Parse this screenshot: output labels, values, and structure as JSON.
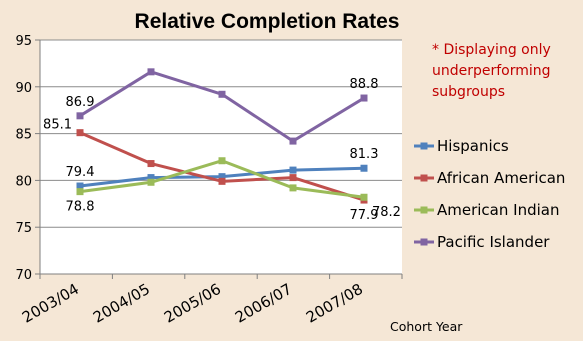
{
  "chart_data": {
    "type": "line",
    "title": "Relative Completion Rates",
    "xlabel": "Cohort Year",
    "ylabel": "",
    "categories": [
      "2003/04",
      "2004/05",
      "2005/06",
      "2006/07",
      "2007/08"
    ],
    "ylim": [
      70,
      95
    ],
    "yticks": [
      70,
      75,
      80,
      85,
      90,
      95
    ],
    "grid": true,
    "legend_position": "right",
    "note": {
      "lines": [
        "* Displaying only",
        "underperforming",
        "subgroups"
      ],
      "color": "#c00000"
    },
    "series": [
      {
        "name": "Hispanics",
        "color": "#4f81bd",
        "values": [
          79.4,
          80.3,
          80.4,
          81.1,
          81.3
        ]
      },
      {
        "name": "African American",
        "color": "#c0504d",
        "values": [
          85.1,
          81.8,
          79.9,
          80.3,
          77.9
        ]
      },
      {
        "name": "American Indian",
        "color": "#9bbb59",
        "values": [
          78.8,
          79.8,
          82.1,
          79.2,
          78.2
        ]
      },
      {
        "name": "Pacific Islander",
        "color": "#8064a2",
        "values": [
          86.9,
          91.6,
          89.2,
          84.2,
          88.8
        ]
      }
    ],
    "data_labels": [
      {
        "text": "86.9",
        "series": 3,
        "index": 0,
        "pos": "above"
      },
      {
        "text": "85.1",
        "series": 1,
        "index": 0,
        "pos": "left"
      },
      {
        "text": "79.4",
        "series": 0,
        "index": 0,
        "pos": "above"
      },
      {
        "text": "78.8",
        "series": 2,
        "index": 0,
        "pos": "below"
      },
      {
        "text": "88.8",
        "series": 3,
        "index": 4,
        "pos": "above"
      },
      {
        "text": "81.3",
        "series": 0,
        "index": 4,
        "pos": "above"
      },
      {
        "text": "78.2",
        "series": 2,
        "index": 4,
        "pos": "right"
      },
      {
        "text": "77.9",
        "series": 1,
        "index": 4,
        "pos": "below"
      }
    ]
  }
}
